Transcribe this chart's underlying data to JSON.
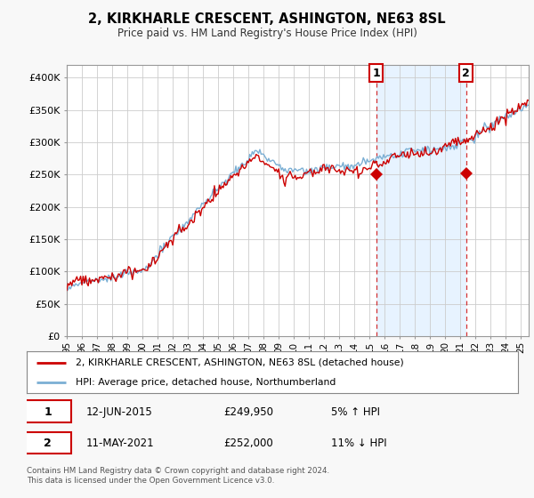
{
  "title": "2, KIRKHARLE CRESCENT, ASHINGTON, NE63 8SL",
  "subtitle": "Price paid vs. HM Land Registry's House Price Index (HPI)",
  "ylabel_ticks": [
    "£0",
    "£50K",
    "£100K",
    "£150K",
    "£200K",
    "£250K",
    "£300K",
    "£350K",
    "£400K"
  ],
  "ytick_vals": [
    0,
    50000,
    100000,
    150000,
    200000,
    250000,
    300000,
    350000,
    400000
  ],
  "ylim": [
    0,
    420000
  ],
  "xlim_start": 1995.0,
  "xlim_end": 2025.5,
  "sale1_x": 2015.44,
  "sale1_y": 249950,
  "sale1_label": "1",
  "sale1_date": "12-JUN-2015",
  "sale1_price": "£249,950",
  "sale1_hpi": "5% ↑ HPI",
  "sale2_x": 2021.36,
  "sale2_y": 252000,
  "sale2_label": "2",
  "sale2_date": "11-MAY-2021",
  "sale2_price": "£252,000",
  "sale2_hpi": "11% ↓ HPI",
  "legend_line1": "2, KIRKHARLE CRESCENT, ASHINGTON, NE63 8SL (detached house)",
  "legend_line2": "HPI: Average price, detached house, Northumberland",
  "footer": "Contains HM Land Registry data © Crown copyright and database right 2024.\nThis data is licensed under the Open Government Licence v3.0.",
  "line_color_red": "#cc0000",
  "line_color_blue": "#7bafd4",
  "shade_color": "#ddeeff",
  "background_color": "#f8f8f8",
  "plot_bg_color": "#ffffff",
  "grid_color": "#cccccc",
  "xticks": [
    1995,
    1996,
    1997,
    1998,
    1999,
    2000,
    2001,
    2002,
    2003,
    2004,
    2005,
    2006,
    2007,
    2008,
    2009,
    2010,
    2011,
    2012,
    2013,
    2014,
    2015,
    2016,
    2017,
    2018,
    2019,
    2020,
    2021,
    2022,
    2023,
    2024,
    2025
  ],
  "seed": 17
}
